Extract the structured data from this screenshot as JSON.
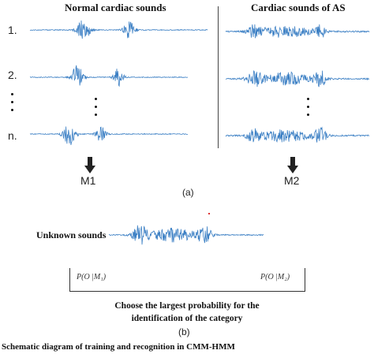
{
  "panel_a": {
    "normal_header": "Normal cardiac sounds",
    "as_header": "Cardiac sounds of AS",
    "row_labels": [
      "1.",
      "2.",
      "n."
    ],
    "model_labels": [
      "M1",
      "M2"
    ],
    "label": "(a)"
  },
  "panel_b": {
    "unknown_label": "Unknown sounds",
    "prob_left": "P(O |M₁)",
    "prob_right": "P(O |M₂)",
    "choose_line1": "Choose the largest probability for the",
    "choose_line2": "identification of the category",
    "label": "(b)"
  },
  "caption_fragment": "Schematic diagram of training and recognition in CMM-HMM"
}
